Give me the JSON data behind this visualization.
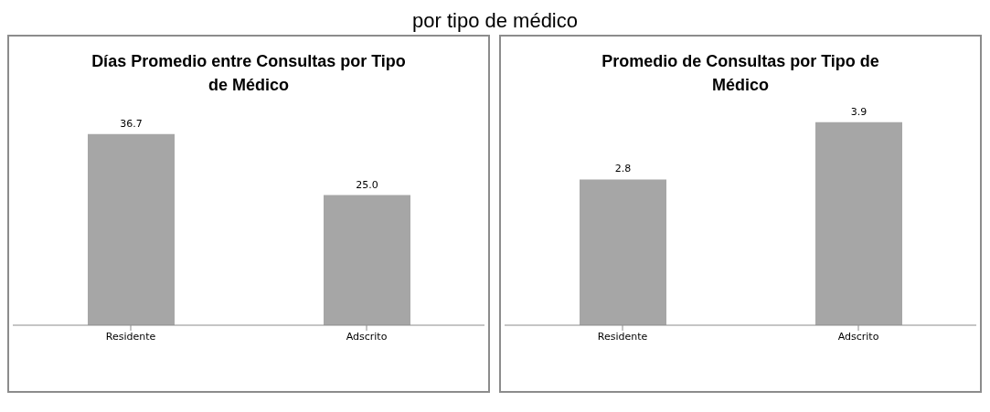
{
  "chart_data": [
    {
      "type": "bar",
      "title": "Días Promedio entre Consultas por Tipo de Médico",
      "categories": [
        "Residente",
        "Adscrito"
      ],
      "values": [
        36.7,
        25.0
      ],
      "value_labels": [
        "36.7",
        "25.0"
      ],
      "color": "#a6a6a6",
      "annotations": [
        "por tipo de médico"
      ]
    },
    {
      "type": "bar",
      "title": "Promedio de Consultas por Tipo de Médico",
      "categories": [
        "Residente",
        "Adscrito"
      ],
      "values": [
        2.8,
        3.9
      ],
      "data_labels": true,
      "color": "#a6a6a6"
    }
  ]
}
